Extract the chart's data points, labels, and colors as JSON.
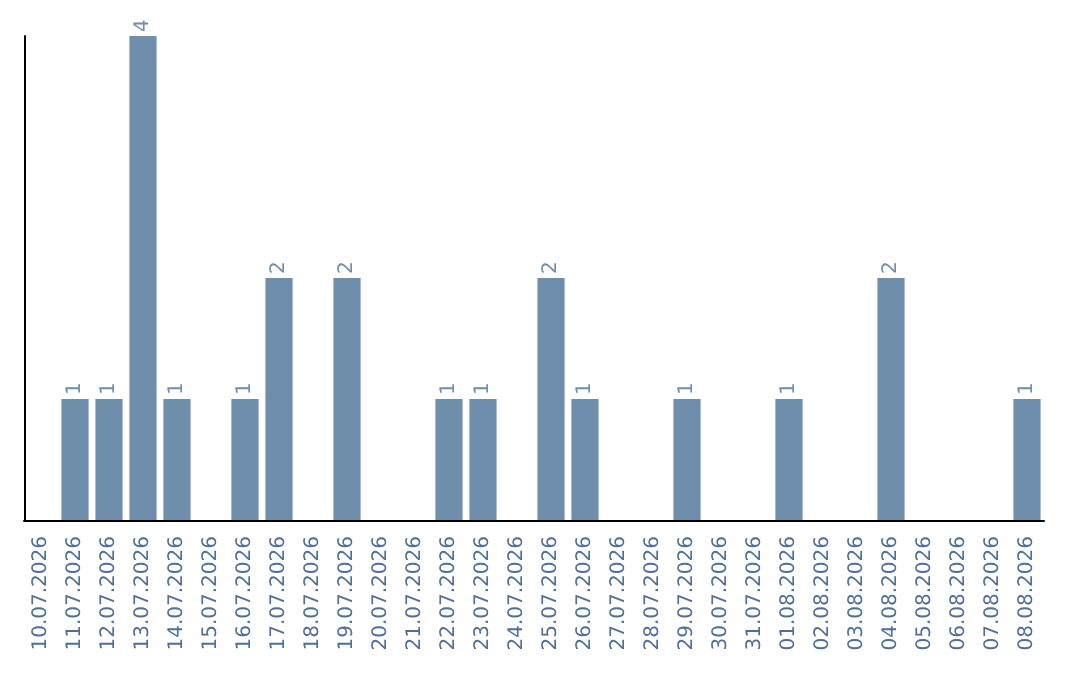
{
  "chart_data": {
    "type": "bar",
    "categories": [
      "10.07.2026",
      "11.07.2026",
      "12.07.2026",
      "13.07.2026",
      "14.07.2026",
      "15.07.2026",
      "16.07.2026",
      "17.07.2026",
      "18.07.2026",
      "19.07.2026",
      "20.07.2026",
      "21.07.2026",
      "22.07.2026",
      "23.07.2026",
      "24.07.2026",
      "25.07.2026",
      "26.07.2026",
      "27.07.2026",
      "28.07.2026",
      "29.07.2026",
      "30.07.2026",
      "31.07.2026",
      "01.08.2026",
      "02.08.2026",
      "03.08.2026",
      "04.08.2026",
      "05.08.2026",
      "06.08.2026",
      "07.08.2026",
      "08.08.2026"
    ],
    "values": [
      0,
      1,
      1,
      4,
      1,
      0,
      1,
      2,
      0,
      2,
      0,
      0,
      1,
      1,
      0,
      2,
      1,
      0,
      0,
      1,
      0,
      0,
      1,
      0,
      0,
      2,
      0,
      0,
      0,
      1
    ],
    "value_labels": [
      null,
      "1",
      "1",
      "4",
      "1",
      null,
      "1",
      "2",
      null,
      "2",
      null,
      null,
      "1",
      "1",
      null,
      "2",
      "1",
      null,
      null,
      "1",
      null,
      null,
      "1",
      null,
      null,
      "2",
      null,
      null,
      null,
      "1"
    ],
    "color": "#6f8eab",
    "grid": false,
    "tick_labels": "x"
  }
}
